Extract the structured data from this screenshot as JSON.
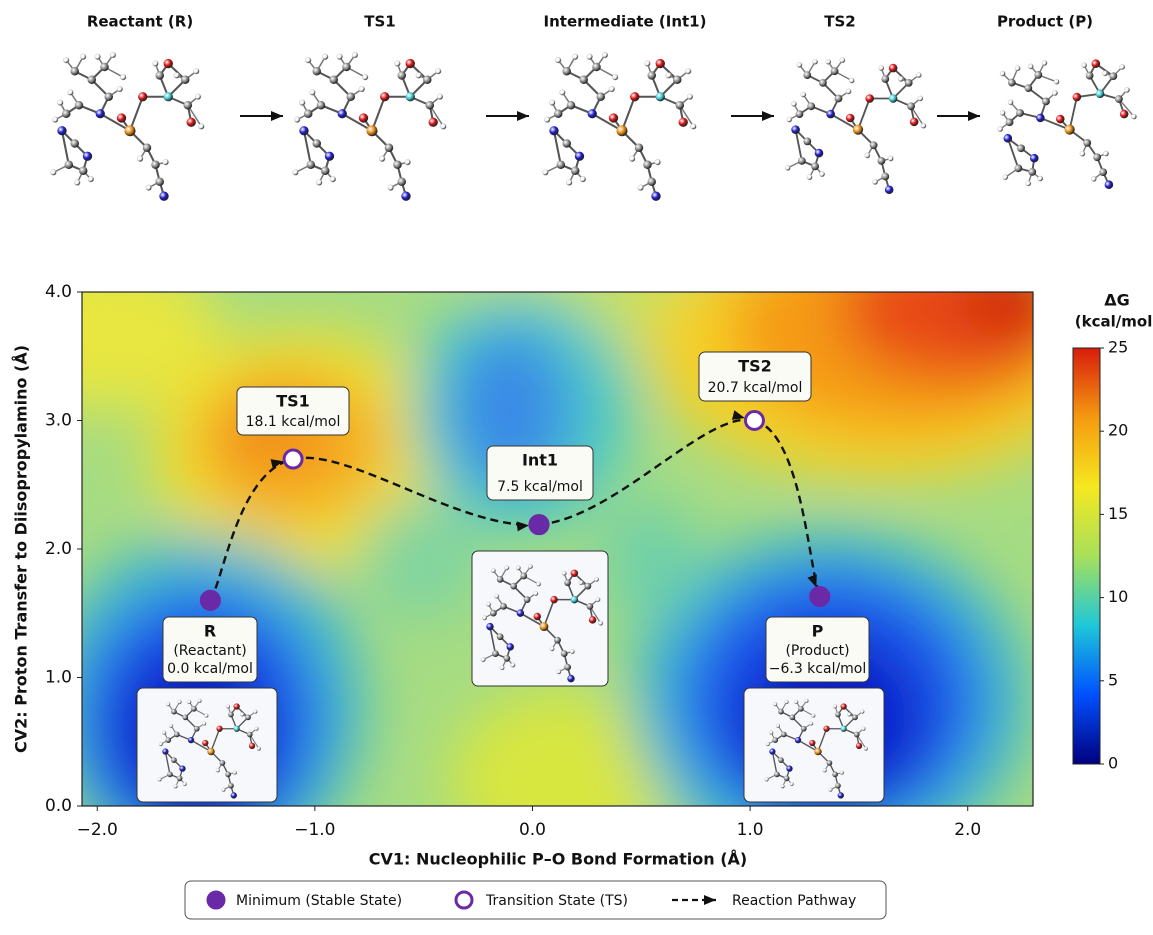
{
  "structures": [
    {
      "label": "Reactant (R)",
      "kind": "minimum"
    },
    {
      "label": "TS1",
      "kind": "transition_state"
    },
    {
      "label": "Intermediate (Int1)",
      "kind": "minimum"
    },
    {
      "label": "TS2",
      "kind": "transition_state"
    },
    {
      "label": "Product (P)",
      "kind": "minimum"
    }
  ],
  "chart_data": {
    "type": "scatter",
    "x_label": "CV1: Nucleophilic P–O Bond Formation (Å)",
    "y_label": "CV2: Proton Transfer to Diisopropylamino (Å)",
    "xlim": [
      -2.07,
      2.3
    ],
    "ylim": [
      0,
      4
    ],
    "xticks": [
      {
        "value": -2,
        "label": "−2.0"
      },
      {
        "value": -1,
        "label": "−1.0"
      },
      {
        "value": 0,
        "label": "0.0"
      },
      {
        "value": 1,
        "label": "1.0"
      },
      {
        "value": 2,
        "label": "2.0"
      }
    ],
    "yticks": [
      {
        "value": 0,
        "label": "0.0"
      },
      {
        "value": 1,
        "label": "1.0"
      },
      {
        "value": 2,
        "label": "2.0"
      },
      {
        "value": 3,
        "label": "3.0"
      },
      {
        "value": 4,
        "label": "4.0"
      }
    ],
    "states": [
      {
        "name": "R",
        "description": "(Reactant)",
        "kind": "minimum",
        "x": -1.48,
        "y": 1.6,
        "energy": 0,
        "energy_label": "0.0 kcal/mol"
      },
      {
        "name": "TS1",
        "kind": "transition_state",
        "x": -1.1,
        "y": 2.7,
        "energy": 18.1,
        "energy_label": "18.1 kcal/mol"
      },
      {
        "name": "Int1",
        "kind": "minimum",
        "x": 0.03,
        "y": 2.19,
        "energy": 7.5,
        "energy_label": "7.5 kcal/mol"
      },
      {
        "name": "TS2",
        "kind": "transition_state",
        "x": 1.02,
        "y": 3.0,
        "energy": 20.7,
        "energy_label": "20.7 kcal/mol"
      },
      {
        "name": "P",
        "description": "(Product)",
        "kind": "minimum",
        "x": 1.32,
        "y": 1.63,
        "energy": -6.3,
        "energy_label": "−6.3 kcal/mol"
      }
    ],
    "marker_color": "#6a2aa8",
    "pathway_color": "#111111",
    "ts_label_color": "#e8201c",
    "minimum_label_color": "#1c1ca0",
    "legend": {
      "minimum": "Minimum (Stable State)",
      "transition_state": "Transition State (TS)",
      "pathway": "Reaction Pathway"
    },
    "colorbar": {
      "title": "ΔG",
      "unit": "(kcal/mol)",
      "lim": [
        0,
        25
      ],
      "ticks": [
        0,
        5,
        10,
        15,
        20,
        25
      ],
      "colors": [
        "#00007f",
        "#0050ff",
        "#1ec8d8",
        "#a8e05a",
        "#f5e820",
        "#f59a10",
        "#d81c0c"
      ]
    }
  }
}
